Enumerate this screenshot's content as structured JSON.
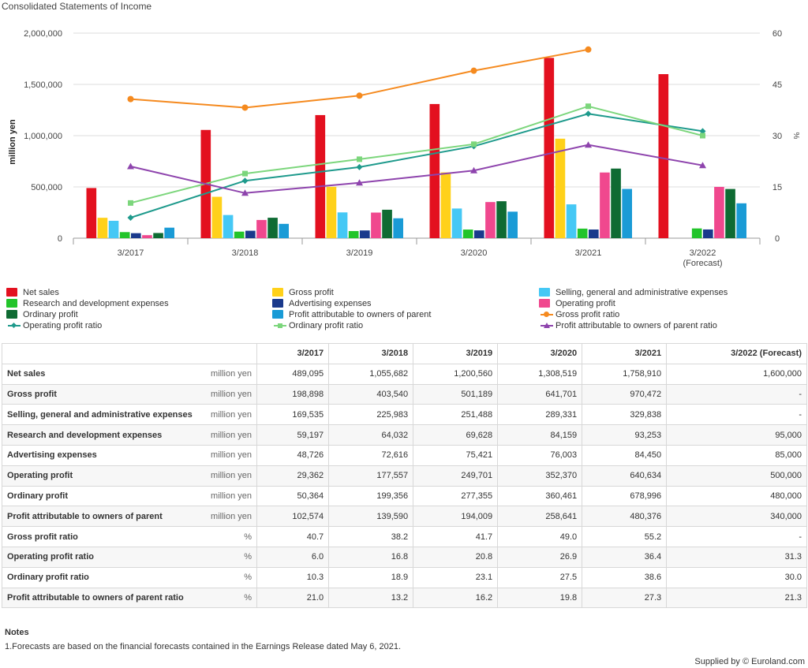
{
  "chart_data": {
    "type": "bar",
    "title": "Consolidated Statements of Income",
    "categories": [
      "3/2017",
      "3/2018",
      "3/2019",
      "3/2020",
      "3/2021",
      "3/2022\n(Forecast)"
    ],
    "ylabel": "million yen",
    "y2label": "%",
    "ylim": [
      0,
      2000000
    ],
    "y2lim": [
      0,
      60
    ],
    "yticks": [
      "0",
      "500,000",
      "1,000,000",
      "1,500,000",
      "2,000,000"
    ],
    "y2ticks": [
      "0",
      "15",
      "30",
      "45",
      "60"
    ],
    "grid": true,
    "legend": "bottom",
    "bar_series": [
      {
        "name": "Net sales",
        "color": "#e3101f",
        "values": [
          489095,
          1055682,
          1200560,
          1308519,
          1758910,
          1600000
        ]
      },
      {
        "name": "Gross profit",
        "color": "#ffd11a",
        "values": [
          198898,
          403540,
          501189,
          641701,
          970472,
          null
        ]
      },
      {
        "name": "Selling, general and administrative expenses",
        "color": "#45c8f5",
        "values": [
          169535,
          225983,
          251488,
          289331,
          329838,
          null
        ]
      },
      {
        "name": "Research and development expenses",
        "color": "#22c42a",
        "values": [
          59197,
          64032,
          69628,
          84159,
          93253,
          95000
        ]
      },
      {
        "name": "Advertising expenses",
        "color": "#1a3a8c",
        "values": [
          48726,
          72616,
          75421,
          76003,
          84450,
          85000
        ]
      },
      {
        "name": "Operating profit",
        "color": "#f0488e",
        "values": [
          29362,
          177557,
          249701,
          352370,
          640634,
          500000
        ]
      },
      {
        "name": "Ordinary profit",
        "color": "#0f6b33",
        "values": [
          50364,
          199356,
          277355,
          360461,
          678996,
          480000
        ]
      },
      {
        "name": "Profit attributable to owners of parent",
        "color": "#1a9bd6",
        "values": [
          102574,
          139590,
          194009,
          258641,
          480376,
          340000
        ]
      }
    ],
    "line_series": [
      {
        "name": "Gross profit ratio",
        "color": "#f58a1f",
        "marker": "circle",
        "values": [
          40.7,
          38.2,
          41.7,
          49.0,
          55.2,
          null
        ]
      },
      {
        "name": "Operating profit ratio",
        "color": "#1e9a8c",
        "marker": "diamond",
        "values": [
          6.0,
          16.8,
          20.8,
          26.9,
          36.4,
          31.3
        ]
      },
      {
        "name": "Ordinary profit ratio",
        "color": "#7cd67c",
        "marker": "square",
        "values": [
          10.3,
          18.9,
          23.1,
          27.5,
          38.6,
          30.0
        ]
      },
      {
        "name": "Profit attributable to owners of parent ratio",
        "color": "#8e44ad",
        "marker": "triangle",
        "values": [
          21.0,
          13.2,
          16.2,
          19.8,
          27.3,
          21.3
        ]
      }
    ]
  },
  "table": {
    "headers": [
      "3/2017",
      "3/2018",
      "3/2019",
      "3/2020",
      "3/2021",
      "3/2022 (Forecast)"
    ],
    "rows": [
      {
        "name": "Net sales",
        "unit": "million yen",
        "values": [
          "489,095",
          "1,055,682",
          "1,200,560",
          "1,308,519",
          "1,758,910",
          "1,600,000"
        ]
      },
      {
        "name": "Gross profit",
        "unit": "million yen",
        "values": [
          "198,898",
          "403,540",
          "501,189",
          "641,701",
          "970,472",
          "-"
        ]
      },
      {
        "name": "Selling, general and administrative expenses",
        "unit": "million yen",
        "values": [
          "169,535",
          "225,983",
          "251,488",
          "289,331",
          "329,838",
          "-"
        ]
      },
      {
        "name": "Research and development expenses",
        "unit": "million yen",
        "values": [
          "59,197",
          "64,032",
          "69,628",
          "84,159",
          "93,253",
          "95,000"
        ]
      },
      {
        "name": "Advertising expenses",
        "unit": "million yen",
        "values": [
          "48,726",
          "72,616",
          "75,421",
          "76,003",
          "84,450",
          "85,000"
        ]
      },
      {
        "name": "Operating profit",
        "unit": "million yen",
        "values": [
          "29,362",
          "177,557",
          "249,701",
          "352,370",
          "640,634",
          "500,000"
        ]
      },
      {
        "name": "Ordinary profit",
        "unit": "million yen",
        "values": [
          "50,364",
          "199,356",
          "277,355",
          "360,461",
          "678,996",
          "480,000"
        ]
      },
      {
        "name": "Profit attributable to owners of parent",
        "unit": "million yen",
        "values": [
          "102,574",
          "139,590",
          "194,009",
          "258,641",
          "480,376",
          "340,000"
        ]
      },
      {
        "name": "Gross profit ratio",
        "unit": "%",
        "values": [
          "40.7",
          "38.2",
          "41.7",
          "49.0",
          "55.2",
          "-"
        ]
      },
      {
        "name": "Operating profit ratio",
        "unit": "%",
        "values": [
          "6.0",
          "16.8",
          "20.8",
          "26.9",
          "36.4",
          "31.3"
        ]
      },
      {
        "name": "Ordinary profit ratio",
        "unit": "%",
        "values": [
          "10.3",
          "18.9",
          "23.1",
          "27.5",
          "38.6",
          "30.0"
        ]
      },
      {
        "name": "Profit attributable to owners of parent ratio",
        "unit": "%",
        "values": [
          "21.0",
          "13.2",
          "16.2",
          "19.8",
          "27.3",
          "21.3"
        ]
      }
    ]
  },
  "notes": {
    "title": "Notes",
    "items": [
      "1.Forecasts are based on the financial forecasts contained in the Earnings Release dated May 6, 2021."
    ]
  },
  "footer": {
    "supplied": "Supplied by © Euroland.com"
  }
}
